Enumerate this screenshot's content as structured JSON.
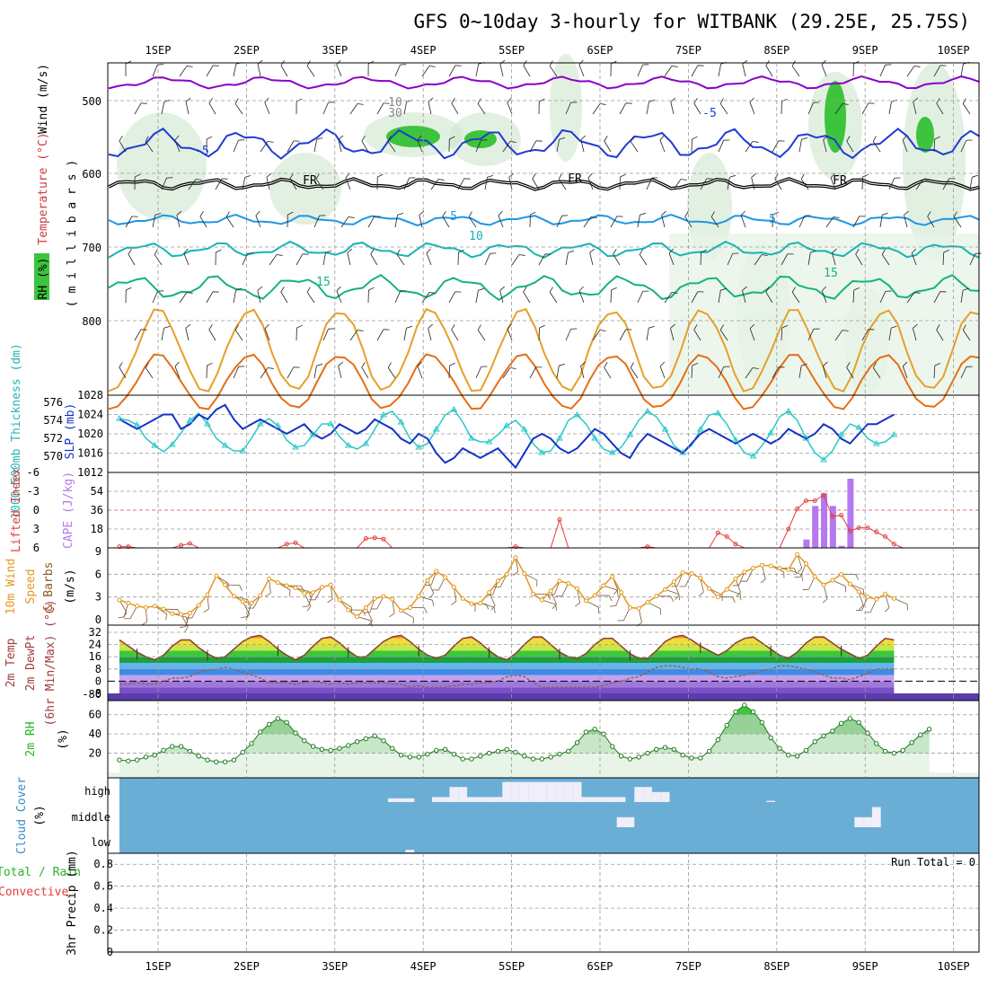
{
  "title": "GFS 0~10day 3-hourly for WITBANK (29.25E, 25.75S)",
  "dates": [
    "1SEP",
    "2SEP",
    "3SEP",
    "4SEP",
    "5SEP",
    "6SEP",
    "7SEP",
    "8SEP",
    "9SEP",
    "10SEP"
  ],
  "colors": {
    "rh_green": "#3cc43c",
    "temp_purple": "#8a00c8",
    "temp_blue": "#1e3cd2",
    "temp_lightblue": "#1e96e6",
    "temp_teal": "#14b4b4",
    "temp_green": "#14b478",
    "temp_orange": "#e6a028",
    "temp_darkorange": "#e66e14",
    "temp_magenta": "#e6148c",
    "freezing": "#000000",
    "slp": "#1432c8",
    "thickness": "#28c8c8",
    "lifted_index": "#e63c3c",
    "cape": "#b478f0",
    "wind": "#e6961e",
    "dewpoint": "#8c2828",
    "rh2m": "#3cc43c",
    "cloud": "#6aaed6",
    "cloud_fill": "#f0eef8"
  },
  "panels": {
    "upper": {
      "ylabel_wind": "Wind (m/s)",
      "ylabel_temp": "Temperature (°C)",
      "ylabel_rh": "RH (%)",
      "ylabel_mb": "( m i l l i b a r s )",
      "yticks": [
        "500",
        "600",
        "700",
        "800"
      ],
      "contour_labels": [
        "-5",
        "-5",
        "FR",
        "FR",
        "FR",
        "5",
        "5",
        "10",
        "15",
        "15",
        "10",
        "30"
      ]
    },
    "pressure": {
      "ylabel_thickness": "1000~500mb Thickness (dm)",
      "ylabel_slp": "SLP (mb)",
      "yticks_left": [
        "576",
        "574",
        "572",
        "570"
      ],
      "yticks_right": [
        "1028",
        "1024",
        "1020",
        "1016",
        "1012"
      ]
    },
    "stability": {
      "ylabel_li": "Lifted Index",
      "ylabel_cape": "CAPE (J/kg)",
      "yticks_left": [
        "-6",
        "-3",
        "0",
        "3",
        "6"
      ],
      "yticks_right": [
        "54",
        "36",
        "18"
      ]
    },
    "wind10m": {
      "ylabel_1": "10m Wind",
      "ylabel_2": "Speed",
      "ylabel_3": "& Barbs",
      "ylabel_units": "(m/s)",
      "yticks": [
        "9",
        "6",
        "3",
        "0"
      ]
    },
    "temp2m": {
      "ylabel_1": "2m Temp",
      "ylabel_2": "2m DewPt",
      "ylabel_3": "(6hr Min/Max) (°C)",
      "yticks": [
        "32",
        "24",
        "16",
        "8",
        "0",
        "-8",
        "-80"
      ]
    },
    "rh2m": {
      "ylabel_1": "2m RH",
      "ylabel_units": "(%)",
      "yticks": [
        "60",
        "40",
        "20"
      ]
    },
    "cloud": {
      "ylabel_1": "Cloud Cover",
      "ylabel_units": "(%)",
      "levels": [
        "high",
        "middle",
        "low"
      ]
    },
    "precip": {
      "ylabel_1": "Total / Rain",
      "ylabel_2": "Convective",
      "ylabel_3": "3hr Precip (mm)",
      "yticks": [
        "0.8",
        "0.6",
        "0.4",
        "0.2",
        "0"
      ],
      "run_total": "Run Total = 0"
    }
  },
  "chart_data": [
    {
      "type": "line",
      "name": "pressure",
      "series": [
        {
          "name": "SLP (mb)",
          "axis": "right",
          "values": [
            1023,
            1022,
            1021,
            1022,
            1023,
            1024,
            1024,
            1021,
            1022,
            1024,
            1023,
            1025,
            1026,
            1023,
            1021,
            1022,
            1023,
            1022,
            1021,
            1020,
            1021,
            1022,
            1020,
            1019,
            1020,
            1022,
            1021,
            1020,
            1021,
            1023,
            1022,
            1021,
            1019,
            1018,
            1020,
            1019,
            1016,
            1014,
            1015,
            1017,
            1016,
            1015,
            1016,
            1017,
            1015,
            1013,
            1016,
            1019,
            1020,
            1019,
            1017,
            1016,
            1017,
            1019,
            1021,
            1020,
            1018,
            1016,
            1015,
            1018,
            1020,
            1019,
            1018,
            1017,
            1016,
            1018,
            1020,
            1021,
            1020,
            1019,
            1018,
            1019,
            1020,
            1019,
            1018,
            1019,
            1021,
            1020,
            1019,
            1020,
            1022,
            1021,
            1019,
            1018,
            1020,
            1022,
            1022,
            1023,
            1024
          ]
        },
        {
          "name": "1000~500mb Thickness (dm)",
          "axis": "left",
          "values": [
            574.2,
            574.0,
            573.5,
            572.0,
            571.2,
            570.5,
            571.3,
            572.6,
            574.0,
            574.8,
            573.6,
            572.0,
            571.2,
            570.6,
            570.6,
            572.0,
            573.6,
            574.2,
            573.4,
            571.8,
            571.0,
            571.2,
            572.4,
            573.6,
            573.6,
            572.2,
            571.2,
            570.8,
            571.4,
            573.0,
            574.6,
            575.0,
            573.8,
            572.0,
            571.0,
            571.4,
            573.0,
            574.6,
            575.2,
            573.8,
            572.0,
            571.6,
            571.6,
            572.4,
            573.4,
            574.0,
            573.0,
            571.4,
            570.4,
            570.6,
            572.0,
            574.0,
            574.6,
            573.6,
            572.0,
            570.8,
            570.4,
            571.0,
            572.4,
            574.0,
            575.0,
            574.4,
            573.0,
            571.2,
            570.4,
            571.2,
            573.0,
            574.6,
            574.8,
            573.6,
            571.8,
            570.4,
            570.0,
            571.2,
            572.6,
            574.4,
            575.0,
            574.0,
            572.0,
            570.4,
            569.6,
            570.6,
            572.4,
            573.6,
            573.2,
            572.0,
            571.4,
            571.6,
            572.4
          ]
        }
      ]
    },
    {
      "type": "bar",
      "name": "CAPE (J/kg)",
      "x_index": [
        78,
        79,
        80,
        81,
        82,
        83,
        84
      ],
      "values": [
        8,
        40,
        52,
        40,
        2,
        66,
        0
      ],
      "ylim": [
        0,
        72
      ]
    },
    {
      "type": "line",
      "name": "Lifted Index",
      "values": [
        5.8,
        5.8,
        6,
        6,
        6,
        6,
        6,
        5.6,
        5.3,
        6,
        6,
        6,
        6,
        6,
        6,
        6,
        6,
        6,
        6,
        5.4,
        5.2,
        6,
        6,
        6,
        6,
        6,
        6,
        6,
        4.5,
        4.4,
        4.6,
        6,
        6,
        6,
        6,
        6,
        6,
        6,
        6,
        6,
        6,
        6,
        6,
        6,
        6,
        5.8,
        6,
        6,
        6,
        6,
        1.5,
        6,
        6,
        6,
        6,
        6,
        6,
        6,
        6,
        6,
        5.8,
        6,
        6,
        6,
        6,
        6,
        6,
        6,
        3.6,
        4.2,
        5.4,
        6,
        6,
        6,
        6,
        6,
        3,
        -0.2,
        -1.5,
        -1.5,
        -2.4,
        1,
        0.8,
        3.3,
        2.8,
        2.8,
        3.5,
        4.2,
        5.4,
        6
      ],
      "ylim_reversed": [
        6,
        -6
      ]
    },
    {
      "type": "line",
      "name": "10m Wind Speed (m/s)",
      "values": [
        2.6,
        2.2,
        1.8,
        1.6,
        1.8,
        1.4,
        0.8,
        0.7,
        0.9,
        1.9,
        3.3,
        5.8,
        4.6,
        3.1,
        2.4,
        2.2,
        3.2,
        5.4,
        4.9,
        4.5,
        4.2,
        3.5,
        3.6,
        4.3,
        4.6,
        2.6,
        1.3,
        0.4,
        1.6,
        2.8,
        3.1,
        2.7,
        1.2,
        1.6,
        3.1,
        5.2,
        6.4,
        5.6,
        4.3,
        2.8,
        2.1,
        2.2,
        3.6,
        5.1,
        6.0,
        8.2,
        6.1,
        3.4,
        2.6,
        3.8,
        5.1,
        4.8,
        4.1,
        2.5,
        3.2,
        4.5,
        5.7,
        3.6,
        1.6,
        1.5,
        2.3,
        3.1,
        4.0,
        5.0,
        6.2,
        6.1,
        5.5,
        4.1,
        3.0,
        4.0,
        5.4,
        6.3,
        6.8,
        7.2,
        7.1,
        6.8,
        6.6,
        8.6,
        7.4,
        5.7,
        4.6,
        5.2,
        6.0,
        4.7,
        3.7,
        3.0,
        2.7,
        3.4,
        2.8
      ],
      "ylim": [
        0,
        9
      ]
    },
    {
      "type": "line",
      "name": "2m Temp / DewPt (°C)",
      "series": [
        {
          "name": "2m Temp",
          "values": [
            27,
            23,
            19,
            16,
            14,
            17,
            23,
            27,
            27,
            22,
            18,
            15,
            16,
            21,
            26,
            29,
            30,
            26,
            21,
            17,
            14,
            17,
            23,
            28,
            29,
            25,
            20,
            16,
            16,
            21,
            26,
            29,
            30,
            26,
            21,
            17,
            15,
            17,
            23,
            28,
            29,
            25,
            20,
            16,
            14,
            18,
            24,
            29,
            29,
            24,
            19,
            16,
            15,
            18,
            24,
            28,
            28,
            23,
            18,
            15,
            15,
            20,
            26,
            29,
            30,
            27,
            23,
            20,
            17,
            20,
            25,
            28,
            29,
            25,
            21,
            17,
            15,
            19,
            25,
            29,
            29,
            25,
            21,
            18,
            15,
            17,
            23,
            28,
            27
          ]
        },
        {
          "name": "2m DewPt",
          "values": [
            -2,
            -2,
            -1,
            -2,
            -2,
            0,
            2,
            2,
            3,
            6,
            7,
            8,
            9,
            8,
            6,
            4,
            2,
            -1,
            -1,
            -1,
            -2,
            -1,
            0,
            -1,
            -2,
            -1,
            -2,
            -1,
            -1,
            -1,
            -1,
            -2,
            -2,
            -4,
            -3,
            -4,
            -4,
            -4,
            -3,
            -2,
            -2,
            -1,
            -1,
            0,
            3,
            4,
            3,
            -1,
            -4,
            -4,
            -4,
            -4,
            -4,
            -4,
            -4,
            -3,
            -1,
            0,
            2,
            3,
            6,
            9,
            10,
            10,
            9,
            8,
            8,
            6,
            3,
            2,
            3,
            4,
            5,
            7,
            8,
            10,
            10,
            9,
            8,
            6,
            4,
            2,
            2,
            1,
            3,
            5,
            8,
            8,
            8
          ]
        }
      ],
      "ylim": [
        -8,
        32
      ]
    },
    {
      "type": "area",
      "name": "2m RH (%)",
      "values": [
        13,
        12,
        13,
        16,
        18,
        23,
        27,
        27,
        22,
        17,
        13,
        11,
        11,
        13,
        21,
        30,
        42,
        50,
        56,
        52,
        41,
        33,
        27,
        24,
        23,
        25,
        28,
        32,
        35,
        38,
        33,
        25,
        18,
        16,
        16,
        19,
        23,
        24,
        19,
        14,
        14,
        17,
        20,
        22,
        24,
        21,
        17,
        14,
        14,
        16,
        19,
        22,
        31,
        42,
        45,
        40,
        27,
        17,
        14,
        16,
        20,
        24,
        26,
        24,
        18,
        15,
        15,
        22,
        34,
        49,
        63,
        70,
        63,
        52,
        36,
        25,
        18,
        17,
        23,
        32,
        38,
        43,
        51,
        56,
        52,
        41,
        30,
        22,
        20,
        23,
        31,
        39,
        45
      ]
    },
    {
      "type": "heatmap",
      "name": "Cloud Cover (%)",
      "rows": [
        "high",
        "middle",
        "low"
      ],
      "high_values": [
        0,
        0,
        0,
        0,
        0,
        0,
        0,
        0,
        0,
        0,
        0,
        0,
        0,
        0,
        0,
        0,
        0,
        0,
        0,
        0,
        0,
        0,
        0,
        0,
        0,
        0,
        0,
        0,
        0,
        0,
        0,
        15,
        15,
        15,
        0,
        0,
        20,
        20,
        60,
        60,
        20,
        20,
        20,
        20,
        80,
        80,
        80,
        80,
        80,
        80,
        80,
        80,
        80,
        20,
        20,
        20,
        20,
        20,
        0,
        60,
        60,
        40,
        40,
        0,
        0,
        0,
        0,
        0,
        0,
        0,
        0,
        0,
        0,
        0,
        5,
        0,
        0,
        0,
        0,
        0,
        0,
        0,
        0,
        0,
        0,
        0,
        0,
        0,
        0,
        0,
        0,
        0,
        0
      ],
      "middle_values": [
        0,
        0,
        0,
        0,
        0,
        0,
        0,
        0,
        0,
        0,
        0,
        0,
        0,
        0,
        0,
        0,
        0,
        0,
        0,
        0,
        0,
        0,
        0,
        0,
        0,
        0,
        0,
        0,
        0,
        0,
        0,
        0,
        0,
        0,
        0,
        0,
        0,
        0,
        0,
        0,
        0,
        0,
        0,
        0,
        0,
        0,
        0,
        0,
        0,
        0,
        0,
        0,
        0,
        0,
        0,
        0,
        0,
        40,
        40,
        0,
        0,
        0,
        0,
        0,
        0,
        0,
        0,
        0,
        0,
        0,
        0,
        0,
        0,
        0,
        0,
        0,
        0,
        0,
        0,
        0,
        0,
        0,
        0,
        0,
        40,
        40,
        80,
        0,
        0,
        0,
        0,
        0,
        0
      ],
      "low_values": [
        0,
        0,
        0,
        0,
        0,
        0,
        0,
        0,
        0,
        0,
        0,
        0,
        0,
        0,
        0,
        0,
        0,
        0,
        0,
        0,
        0,
        0,
        0,
        0,
        0,
        0,
        0,
        0,
        0,
        0,
        0,
        0,
        0,
        10,
        0,
        0,
        0,
        0,
        0,
        0,
        0,
        0,
        0,
        0,
        0,
        0,
        0,
        0,
        0,
        0,
        0,
        0,
        0,
        0,
        0,
        0,
        0,
        0,
        0,
        0,
        0,
        0,
        0,
        0,
        0,
        0,
        0,
        0,
        0,
        0,
        0,
        0,
        0,
        0,
        0,
        0,
        0,
        0,
        0,
        0,
        0,
        0,
        0,
        0,
        0,
        0,
        0,
        0,
        0,
        0,
        0,
        0,
        0
      ]
    },
    {
      "type": "bar",
      "name": "3hr Precip (mm)",
      "values": [],
      "ylim": [
        0,
        0.9
      ]
    }
  ]
}
